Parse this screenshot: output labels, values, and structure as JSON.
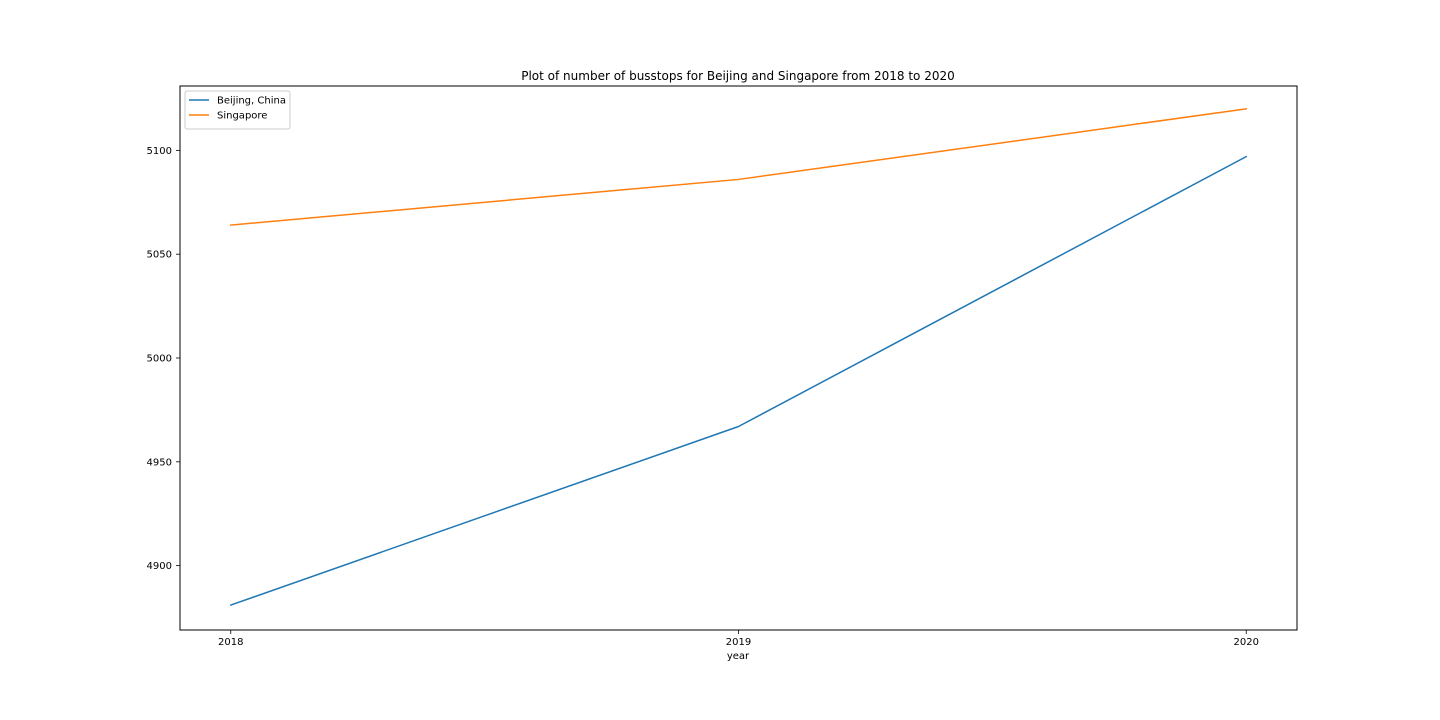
{
  "chart_data": {
    "type": "line",
    "title": "Plot of number of busstops for Beijing and Singapore from 2018 to 2020",
    "xlabel": "year",
    "ylabel": "",
    "x": [
      2018,
      2019,
      2020
    ],
    "x_tick_labels": [
      "2018",
      "2019",
      "2020"
    ],
    "xlim": [
      2017.9,
      2020.1
    ],
    "y_ticks": [
      4900,
      4950,
      5000,
      5050,
      5100
    ],
    "y_tick_labels": [
      "4900",
      "4950",
      "5000",
      "5050",
      "5100"
    ],
    "ylim": [
      4869,
      5131
    ],
    "grid": false,
    "legend_position": "upper-left",
    "series": [
      {
        "name": "Beijing, China",
        "color": "#1f77b4",
        "values": [
          4881,
          4967,
          5097
        ]
      },
      {
        "name": "Singapore",
        "color": "#ff7f0e",
        "values": [
          5064,
          5086,
          5120
        ]
      }
    ]
  }
}
